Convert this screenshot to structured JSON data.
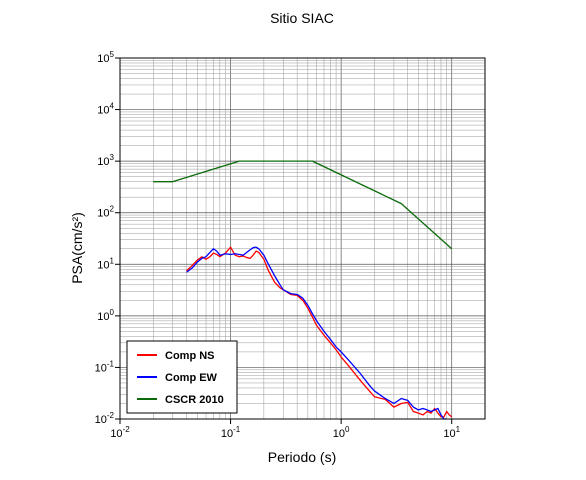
{
  "chart_data": {
    "type": "line",
    "title": "Sitio SIAC",
    "xlabel": "Periodo (s)",
    "ylabel": "PSA(cm/s²)",
    "xscale": "log",
    "yscale": "log",
    "xlim": [
      0.01,
      20
    ],
    "ylim": [
      0.01,
      100000
    ],
    "grid": true,
    "legend_position": "bottom-left",
    "x_ticks": [
      {
        "value": 0.01,
        "base": "10",
        "exp": "-2"
      },
      {
        "value": 0.1,
        "base": "10",
        "exp": "-1"
      },
      {
        "value": 1,
        "base": "10",
        "exp": "0"
      },
      {
        "value": 10,
        "base": "10",
        "exp": "1"
      }
    ],
    "y_ticks": [
      {
        "value": 0.01,
        "base": "10",
        "exp": "-2"
      },
      {
        "value": 0.1,
        "base": "10",
        "exp": "-1"
      },
      {
        "value": 1,
        "base": "10",
        "exp": "0"
      },
      {
        "value": 10,
        "base": "10",
        "exp": "1"
      },
      {
        "value": 100,
        "base": "10",
        "exp": "2"
      },
      {
        "value": 1000,
        "base": "10",
        "exp": "3"
      },
      {
        "value": 10000,
        "base": "10",
        "exp": "4"
      },
      {
        "value": 100000,
        "base": "10",
        "exp": "5"
      }
    ],
    "series": [
      {
        "name": "Comp NS",
        "color": "#ff0000",
        "x": [
          0.04,
          0.045,
          0.05,
          0.055,
          0.06,
          0.065,
          0.07,
          0.075,
          0.08,
          0.09,
          0.1,
          0.11,
          0.12,
          0.13,
          0.14,
          0.15,
          0.16,
          0.17,
          0.18,
          0.2,
          0.22,
          0.25,
          0.28,
          0.3,
          0.35,
          0.4,
          0.45,
          0.5,
          0.55,
          0.6,
          0.7,
          0.8,
          0.9,
          1.0,
          1.2,
          1.5,
          1.8,
          2.0,
          2.5,
          3.0,
          3.5,
          4.0,
          4.5,
          5.0,
          5.5,
          6.0,
          6.5,
          7.0,
          7.5,
          8.0,
          8.5,
          9.0,
          9.5,
          10.0
        ],
        "y": [
          7.5,
          9.5,
          12,
          14,
          12.5,
          14,
          16.5,
          15.5,
          14,
          16.5,
          21.5,
          15,
          14,
          14.5,
          13.5,
          13,
          15,
          18,
          17,
          12.5,
          7.5,
          4.5,
          3.5,
          3.2,
          2.6,
          2.5,
          2.0,
          1.4,
          0.95,
          0.65,
          0.42,
          0.3,
          0.22,
          0.16,
          0.1,
          0.055,
          0.035,
          0.027,
          0.024,
          0.017,
          0.02,
          0.021,
          0.014,
          0.013,
          0.012,
          0.014,
          0.013,
          0.016,
          0.013,
          0.011,
          0.011,
          0.014,
          0.012,
          0.011
        ]
      },
      {
        "name": "Comp EW",
        "color": "#0000ff",
        "x": [
          0.04,
          0.045,
          0.05,
          0.055,
          0.06,
          0.065,
          0.07,
          0.075,
          0.08,
          0.09,
          0.1,
          0.11,
          0.12,
          0.13,
          0.14,
          0.15,
          0.16,
          0.17,
          0.18,
          0.2,
          0.22,
          0.25,
          0.28,
          0.3,
          0.35,
          0.4,
          0.45,
          0.5,
          0.55,
          0.6,
          0.7,
          0.8,
          0.9,
          1.0,
          1.2,
          1.5,
          1.8,
          2.0,
          2.5,
          3.0,
          3.5,
          4.0,
          4.5,
          5.0,
          5.5,
          6.0,
          6.5,
          7.0,
          7.5,
          8.0,
          8.5,
          9.0
        ],
        "y": [
          7.0,
          8.5,
          11,
          13,
          14,
          17,
          20,
          18,
          15,
          16,
          15.5,
          16,
          15.5,
          15,
          17,
          19,
          21,
          21.5,
          20,
          15,
          10,
          6,
          4,
          3.2,
          2.7,
          2.6,
          2.2,
          1.6,
          1.1,
          0.8,
          0.5,
          0.35,
          0.25,
          0.2,
          0.13,
          0.075,
          0.045,
          0.035,
          0.025,
          0.02,
          0.025,
          0.023,
          0.017,
          0.015,
          0.016,
          0.015,
          0.014,
          0.015,
          0.016,
          0.012,
          0.01,
          0.01
        ]
      },
      {
        "name": "CSCR 2010",
        "color": "#0b6b0b",
        "x": [
          0.02,
          0.03,
          0.12,
          0.55,
          3.5,
          10
        ],
        "y": [
          400,
          400,
          1000,
          1000,
          150,
          20
        ]
      }
    ]
  }
}
